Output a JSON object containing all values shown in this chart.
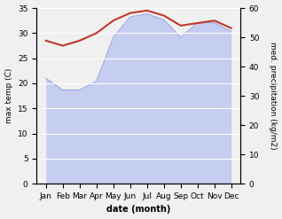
{
  "months": [
    "Jan",
    "Feb",
    "Mar",
    "Apr",
    "May",
    "Jun",
    "Jul",
    "Aug",
    "Sep",
    "Oct",
    "Nov",
    "Dec"
  ],
  "temp": [
    28.5,
    27.5,
    28.5,
    30.0,
    32.5,
    34.0,
    34.5,
    33.5,
    31.5,
    32.0,
    32.5,
    31.0
  ],
  "precip": [
    36.0,
    32.0,
    32.0,
    35.0,
    50.0,
    57.0,
    58.0,
    56.0,
    50.0,
    55.0,
    55.0,
    52.0
  ],
  "temp_color": "#c0392b",
  "precip_fill_color": "#c5cdf0",
  "precip_line_color": "#9ba8e0",
  "left_ylim": [
    0,
    35
  ],
  "right_ylim": [
    0,
    60
  ],
  "left_yticks": [
    0,
    5,
    10,
    15,
    20,
    25,
    30,
    35
  ],
  "right_yticks": [
    0,
    10,
    20,
    30,
    40,
    50,
    60
  ],
  "ylabel_left": "max temp (C)",
  "ylabel_right": "med. precipitation (kg/m2)",
  "xlabel": "date (month)",
  "bg_color": "#f0f0f0",
  "grid_color": "#ffffff"
}
